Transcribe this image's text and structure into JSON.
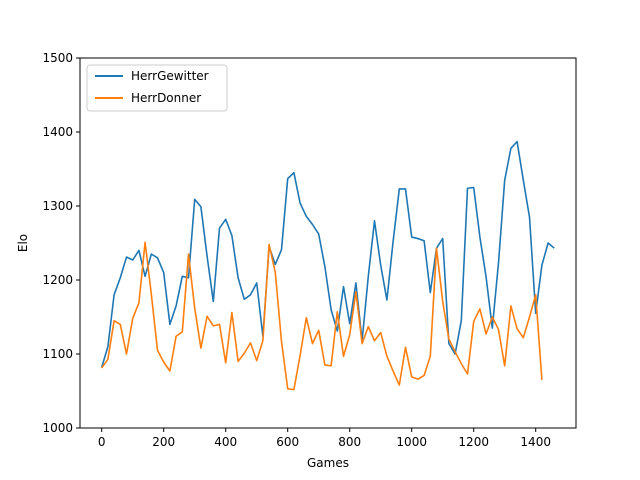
{
  "chart_data": {
    "type": "line",
    "title": "",
    "xlabel": "Games",
    "ylabel": "Elo",
    "xlim": [
      -70,
      1530
    ],
    "ylim": [
      1000,
      1500
    ],
    "xticks": [
      0,
      200,
      400,
      600,
      800,
      1000,
      1200,
      1400
    ],
    "yticks": [
      1000,
      1100,
      1200,
      1300,
      1400,
      1500
    ],
    "grid": false,
    "legend_position": "top-left",
    "series": [
      {
        "name": "HerrGewitter",
        "color": "#1f77b4",
        "points": [
          [
            0,
            1082
          ],
          [
            20,
            1110
          ],
          [
            40,
            1180
          ],
          [
            60,
            1203
          ],
          [
            80,
            1231
          ],
          [
            100,
            1227
          ],
          [
            120,
            1240
          ],
          [
            140,
            1205
          ],
          [
            160,
            1235
          ],
          [
            180,
            1230
          ],
          [
            200,
            1210
          ],
          [
            220,
            1140
          ],
          [
            240,
            1165
          ],
          [
            260,
            1205
          ],
          [
            280,
            1203
          ],
          [
            300,
            1309
          ],
          [
            320,
            1299
          ],
          [
            340,
            1232
          ],
          [
            360,
            1171
          ],
          [
            380,
            1270
          ],
          [
            400,
            1282
          ],
          [
            420,
            1260
          ],
          [
            440,
            1203
          ],
          [
            460,
            1174
          ],
          [
            480,
            1180
          ],
          [
            500,
            1196
          ],
          [
            520,
            1124
          ],
          [
            540,
            1245
          ],
          [
            560,
            1221
          ],
          [
            580,
            1241
          ],
          [
            600,
            1337
          ],
          [
            620,
            1345
          ],
          [
            640,
            1304
          ],
          [
            660,
            1286
          ],
          [
            680,
            1275
          ],
          [
            700,
            1262
          ],
          [
            720,
            1218
          ],
          [
            740,
            1160
          ],
          [
            760,
            1131
          ],
          [
            780,
            1191
          ],
          [
            800,
            1141
          ],
          [
            820,
            1196
          ],
          [
            840,
            1118
          ],
          [
            860,
            1205
          ],
          [
            880,
            1280
          ],
          [
            900,
            1220
          ],
          [
            920,
            1173
          ],
          [
            940,
            1252
          ],
          [
            960,
            1323
          ],
          [
            980,
            1323
          ],
          [
            1000,
            1258
          ],
          [
            1020,
            1256
          ],
          [
            1040,
            1253
          ],
          [
            1060,
            1183
          ],
          [
            1080,
            1243
          ],
          [
            1100,
            1256
          ],
          [
            1120,
            1114
          ],
          [
            1140,
            1100
          ],
          [
            1160,
            1145
          ],
          [
            1180,
            1324
          ],
          [
            1200,
            1325
          ],
          [
            1220,
            1258
          ],
          [
            1240,
            1204
          ],
          [
            1260,
            1135
          ],
          [
            1280,
            1223
          ],
          [
            1300,
            1335
          ],
          [
            1320,
            1378
          ],
          [
            1340,
            1387
          ],
          [
            1360,
            1335
          ],
          [
            1380,
            1285
          ],
          [
            1400,
            1155
          ],
          [
            1420,
            1220
          ],
          [
            1440,
            1250
          ],
          [
            1460,
            1243
          ]
        ]
      },
      {
        "name": "HerrDonner",
        "color": "#ff7f0e",
        "points": [
          [
            0,
            1081
          ],
          [
            20,
            1093
          ],
          [
            40,
            1145
          ],
          [
            60,
            1140
          ],
          [
            80,
            1100
          ],
          [
            100,
            1148
          ],
          [
            120,
            1169
          ],
          [
            140,
            1251
          ],
          [
            160,
            1181
          ],
          [
            180,
            1105
          ],
          [
            200,
            1089
          ],
          [
            220,
            1077
          ],
          [
            240,
            1124
          ],
          [
            260,
            1130
          ],
          [
            280,
            1235
          ],
          [
            300,
            1162
          ],
          [
            320,
            1108
          ],
          [
            340,
            1151
          ],
          [
            360,
            1138
          ],
          [
            380,
            1140
          ],
          [
            400,
            1088
          ],
          [
            420,
            1156
          ],
          [
            440,
            1090
          ],
          [
            460,
            1101
          ],
          [
            480,
            1115
          ],
          [
            500,
            1091
          ],
          [
            520,
            1118
          ],
          [
            540,
            1248
          ],
          [
            560,
            1210
          ],
          [
            580,
            1117
          ],
          [
            600,
            1053
          ],
          [
            620,
            1052
          ],
          [
            640,
            1098
          ],
          [
            660,
            1149
          ],
          [
            680,
            1114
          ],
          [
            700,
            1132
          ],
          [
            720,
            1085
          ],
          [
            740,
            1084
          ],
          [
            760,
            1157
          ],
          [
            780,
            1097
          ],
          [
            800,
            1126
          ],
          [
            820,
            1184
          ],
          [
            840,
            1114
          ],
          [
            860,
            1137
          ],
          [
            880,
            1118
          ],
          [
            900,
            1129
          ],
          [
            920,
            1097
          ],
          [
            940,
            1077
          ],
          [
            960,
            1058
          ],
          [
            980,
            1109
          ],
          [
            1000,
            1069
          ],
          [
            1020,
            1066
          ],
          [
            1040,
            1071
          ],
          [
            1060,
            1097
          ],
          [
            1080,
            1243
          ],
          [
            1100,
            1171
          ],
          [
            1120,
            1120
          ],
          [
            1140,
            1103
          ],
          [
            1160,
            1087
          ],
          [
            1180,
            1073
          ],
          [
            1200,
            1144
          ],
          [
            1220,
            1161
          ],
          [
            1240,
            1127
          ],
          [
            1260,
            1150
          ],
          [
            1280,
            1133
          ],
          [
            1300,
            1084
          ],
          [
            1320,
            1165
          ],
          [
            1340,
            1134
          ],
          [
            1360,
            1122
          ],
          [
            1380,
            1150
          ],
          [
            1400,
            1180
          ],
          [
            1420,
            1065
          ]
        ]
      }
    ]
  }
}
